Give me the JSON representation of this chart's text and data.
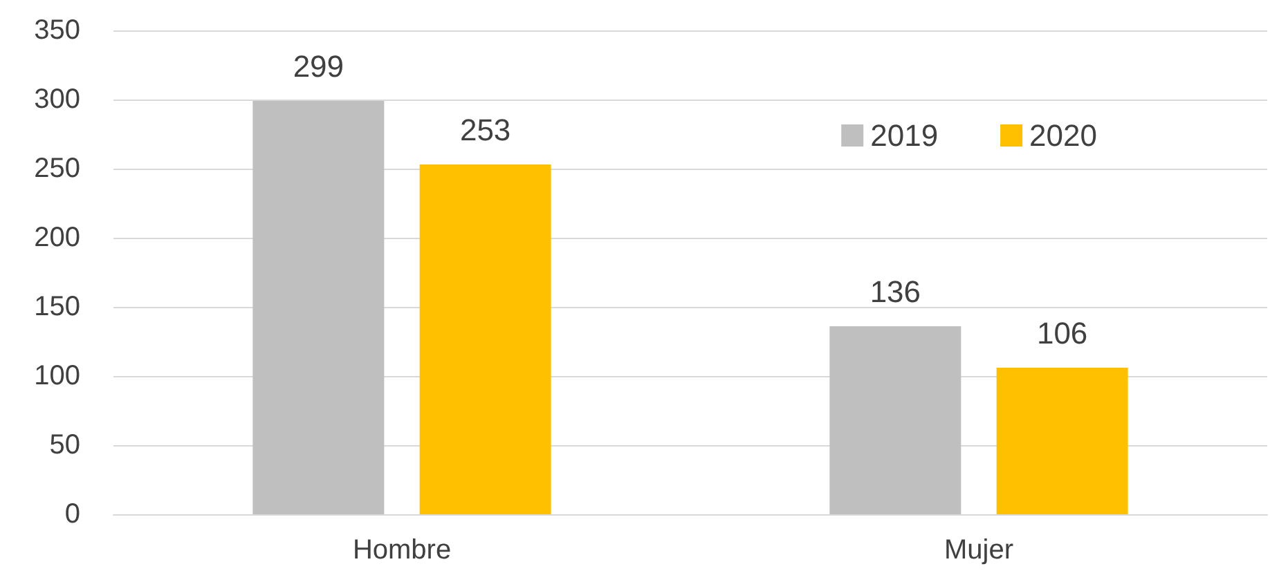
{
  "chart_data": {
    "type": "bar",
    "categories": [
      "Hombre",
      "Mujer"
    ],
    "series": [
      {
        "name": "2019",
        "color": "#bfbfbf",
        "values": [
          299,
          136
        ]
      },
      {
        "name": "2020",
        "color": "#ffc000",
        "values": [
          253,
          106
        ]
      }
    ],
    "ylim": [
      0,
      350
    ],
    "yticks": [
      0,
      50,
      100,
      150,
      200,
      250,
      300,
      350
    ],
    "grid": "y",
    "legend": "top right",
    "data_labels": true
  }
}
